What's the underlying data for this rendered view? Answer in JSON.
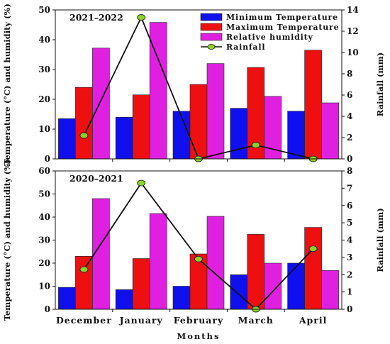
{
  "chart_data": [
    {
      "type": "bar",
      "title": "2021–2022",
      "categories": [
        "December",
        "January",
        "February",
        "March",
        "April"
      ],
      "xlabel": "Months",
      "ylabel": "Temperature (°C) and humidity (%)",
      "y2label": "Rainfall (mm)",
      "ylim": [
        0,
        50
      ],
      "y2lim": [
        0,
        14
      ],
      "yticks": [
        0,
        10,
        20,
        30,
        40,
        50
      ],
      "y2ticks": [
        0,
        2,
        4,
        6,
        8,
        10,
        12,
        14
      ],
      "legend_position": "top-right",
      "series": [
        {
          "name": "Minimum Temperature",
          "kind": "bar",
          "color": "#1010ee",
          "values": [
            13.5,
            14,
            16,
            17,
            16
          ]
        },
        {
          "name": "Maximum Temperature",
          "kind": "bar",
          "color": "#ee1010",
          "values": [
            24,
            21.5,
            25,
            30.7,
            36.5
          ]
        },
        {
          "name": "Relative humidity",
          "kind": "bar",
          "color": "#e020e0",
          "values": [
            37.2,
            45.8,
            32,
            21,
            18.8
          ]
        },
        {
          "name": "Rainfall",
          "kind": "line",
          "axis": "y2",
          "color": "#8bd12a",
          "values": [
            2.2,
            13.3,
            0,
            1.3,
            0
          ]
        }
      ]
    },
    {
      "type": "bar",
      "title": "2020–2021",
      "categories": [
        "December",
        "January",
        "February",
        "March",
        "April"
      ],
      "xlabel": "Months",
      "ylabel": "Temperature (°C) and humidity (%)",
      "y2label": "Rainfall (mm)",
      "ylim": [
        0,
        60
      ],
      "y2lim": [
        0,
        8
      ],
      "yticks": [
        0,
        10,
        20,
        30,
        40,
        50,
        60
      ],
      "y2ticks": [
        0,
        1,
        2,
        3,
        4,
        5,
        6,
        7,
        8
      ],
      "series": [
        {
          "name": "Minimum Temperature",
          "kind": "bar",
          "color": "#1010ee",
          "values": [
            9.5,
            8.5,
            10,
            15,
            20
          ]
        },
        {
          "name": "Maximum Temperature",
          "kind": "bar",
          "color": "#ee1010",
          "values": [
            23,
            22,
            24,
            32.5,
            35.5
          ]
        },
        {
          "name": "Relative humidity",
          "kind": "bar",
          "color": "#e020e0",
          "values": [
            48,
            41.5,
            40.3,
            20,
            16.8
          ]
        },
        {
          "name": "Rainfall",
          "kind": "line",
          "axis": "y2",
          "color": "#8bd12a",
          "values": [
            2.3,
            7.3,
            2.9,
            0,
            3.5
          ]
        }
      ]
    }
  ]
}
